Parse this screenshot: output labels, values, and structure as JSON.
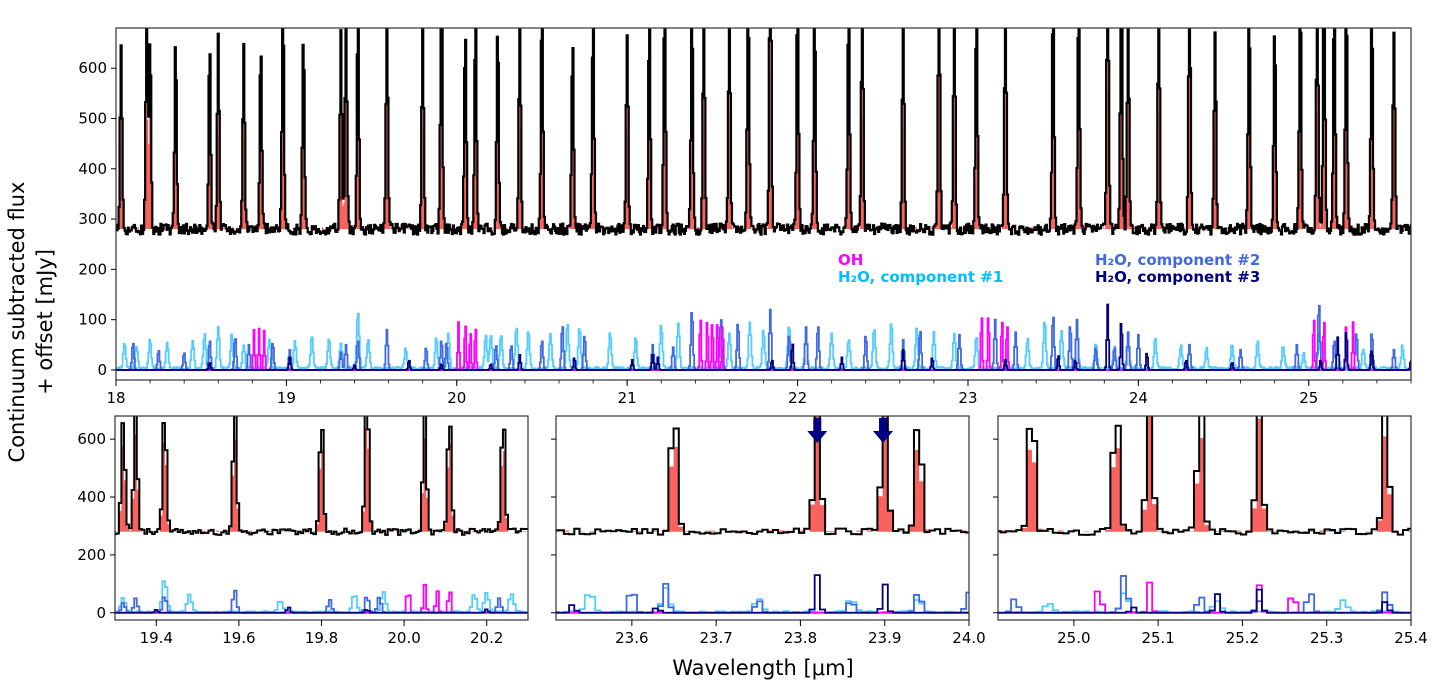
{
  "chart_data": [
    {
      "type": "line",
      "panel": "top-full",
      "xlim": [
        18,
        25.6
      ],
      "ylim": [
        -20,
        680
      ],
      "xticks": [
        18,
        19,
        20,
        21,
        22,
        23,
        24,
        25
      ],
      "yticks": [
        0,
        100,
        200,
        300,
        400,
        500,
        600
      ],
      "baseline_offset": 280,
      "series": [
        {
          "name": "Observed spectrum",
          "color": "#000000",
          "style": "step",
          "lines": [
            [
              18.03,
              370
            ],
            [
              18.18,
              405
            ],
            [
              18.2,
              395
            ],
            [
              18.35,
              380
            ],
            [
              18.55,
              370
            ],
            [
              18.6,
              390
            ],
            [
              18.75,
              365
            ],
            [
              18.85,
              370
            ],
            [
              18.98,
              455
            ],
            [
              19.1,
              385
            ],
            [
              19.32,
              390
            ],
            [
              19.35,
              420
            ],
            [
              19.42,
              430
            ],
            [
              19.59,
              420
            ],
            [
              19.8,
              400
            ],
            [
              19.91,
              515
            ],
            [
              20.05,
              400
            ],
            [
              20.11,
              420
            ],
            [
              20.24,
              400
            ],
            [
              20.37,
              410
            ],
            [
              20.5,
              470
            ],
            [
              20.68,
              390
            ],
            [
              20.8,
              420
            ],
            [
              21.0,
              395
            ],
            [
              21.13,
              430
            ],
            [
              21.22,
              470
            ],
            [
              21.38,
              450
            ],
            [
              21.45,
              430
            ],
            [
              21.6,
              460
            ],
            [
              21.71,
              480
            ],
            [
              21.84,
              633
            ],
            [
              22.0,
              470
            ],
            [
              22.1,
              450
            ],
            [
              22.3,
              460
            ],
            [
              22.38,
              470
            ],
            [
              22.62,
              415
            ],
            [
              22.83,
              500
            ],
            [
              22.92,
              430
            ],
            [
              23.05,
              460
            ],
            [
              23.22,
              455
            ],
            [
              23.5,
              470
            ],
            [
              23.65,
              480
            ],
            [
              23.82,
              560
            ],
            [
              23.9,
              550
            ],
            [
              23.94,
              430
            ],
            [
              24.12,
              470
            ],
            [
              24.3,
              510
            ],
            [
              24.45,
              400
            ],
            [
              24.65,
              460
            ],
            [
              24.8,
              410
            ],
            [
              24.95,
              490
            ],
            [
              25.05,
              480
            ],
            [
              25.09,
              528
            ],
            [
              25.15,
              460
            ],
            [
              25.22,
              490
            ],
            [
              25.37,
              440
            ],
            [
              25.5,
              400
            ]
          ]
        },
        {
          "name": "Model (total)",
          "color": "#f8635f",
          "style": "fill"
        },
        {
          "name": "OH",
          "color": "#ff00ff",
          "style": "step",
          "lines": [
            [
              18.81,
              80
            ],
            [
              18.84,
              82
            ],
            [
              18.87,
              78
            ],
            [
              20.01,
              95
            ],
            [
              20.05,
              97
            ],
            [
              20.08,
              80
            ],
            [
              20.11,
              90
            ],
            [
              21.43,
              110
            ],
            [
              21.47,
              105
            ],
            [
              21.5,
              100
            ],
            [
              21.53,
              100
            ],
            [
              21.56,
              95
            ],
            [
              23.08,
              115
            ],
            [
              23.12,
              115
            ],
            [
              23.2,
              105
            ],
            [
              23.23,
              95
            ],
            [
              25.03,
              110
            ],
            [
              25.09,
              105
            ],
            [
              25.22,
              95
            ],
            [
              25.26,
              95
            ]
          ]
        },
        {
          "name": "H2O, component #1",
          "color": "#55ccff",
          "style": "step",
          "lines": [
            [
              18.05,
              50
            ],
            [
              18.12,
              45
            ],
            [
              18.2,
              60
            ],
            [
              18.3,
              50
            ],
            [
              18.45,
              55
            ],
            [
              18.52,
              70
            ],
            [
              18.6,
              80
            ],
            [
              18.68,
              70
            ],
            [
              18.75,
              45
            ],
            [
              18.9,
              60
            ],
            [
              19.05,
              55
            ],
            [
              19.15,
              65
            ],
            [
              19.25,
              60
            ],
            [
              19.32,
              50
            ],
            [
              19.42,
              115
            ],
            [
              19.48,
              60
            ],
            [
              19.7,
              40
            ],
            [
              19.88,
              60
            ],
            [
              19.95,
              70
            ],
            [
              20.17,
              65
            ],
            [
              20.2,
              70
            ],
            [
              20.26,
              65
            ],
            [
              20.35,
              80
            ],
            [
              20.42,
              75
            ],
            [
              20.55,
              70
            ],
            [
              20.65,
              90
            ],
            [
              20.72,
              80
            ],
            [
              20.9,
              70
            ],
            [
              21.05,
              60
            ],
            [
              21.2,
              85
            ],
            [
              21.3,
              90
            ],
            [
              21.6,
              70
            ],
            [
              21.72,
              90
            ],
            [
              21.8,
              75
            ],
            [
              21.95,
              85
            ],
            [
              22.05,
              65
            ],
            [
              22.2,
              70
            ],
            [
              22.3,
              60
            ],
            [
              22.45,
              80
            ],
            [
              22.55,
              90
            ],
            [
              22.7,
              80
            ],
            [
              22.8,
              70
            ],
            [
              22.92,
              70
            ],
            [
              23.05,
              65
            ],
            [
              23.35,
              60
            ],
            [
              23.45,
              95
            ],
            [
              23.55,
              75
            ],
            [
              23.64,
              80
            ],
            [
              23.75,
              50
            ],
            [
              23.86,
              45
            ],
            [
              23.94,
              50
            ],
            [
              24.1,
              60
            ],
            [
              24.25,
              45
            ],
            [
              24.4,
              40
            ],
            [
              24.55,
              50
            ],
            [
              24.7,
              55
            ],
            [
              24.85,
              45
            ],
            [
              24.97,
              30
            ],
            [
              25.06,
              70
            ],
            [
              25.17,
              40
            ],
            [
              25.32,
              40
            ],
            [
              25.55,
              45
            ]
          ]
        },
        {
          "name": "H2O, component #2",
          "color": "#4169e1",
          "style": "step",
          "lines": [
            [
              18.1,
              55
            ],
            [
              18.25,
              40
            ],
            [
              18.4,
              35
            ],
            [
              18.55,
              60
            ],
            [
              18.7,
              65
            ],
            [
              18.78,
              50
            ],
            [
              18.92,
              55
            ],
            [
              19.02,
              40
            ],
            [
              19.32,
              35
            ],
            [
              19.35,
              50
            ],
            [
              19.42,
              60
            ],
            [
              19.59,
              80
            ],
            [
              19.82,
              45
            ],
            [
              19.91,
              60
            ],
            [
              19.94,
              55
            ],
            [
              20.23,
              50
            ],
            [
              20.32,
              50
            ],
            [
              20.5,
              60
            ],
            [
              20.62,
              90
            ],
            [
              20.75,
              70
            ],
            [
              21.15,
              50
            ],
            [
              21.27,
              45
            ],
            [
              21.38,
              120
            ],
            [
              21.55,
              105
            ],
            [
              21.65,
              95
            ],
            [
              21.84,
              120
            ],
            [
              21.95,
              70
            ],
            [
              22.05,
              85
            ],
            [
              22.12,
              90
            ],
            [
              22.4,
              70
            ],
            [
              22.62,
              60
            ],
            [
              22.72,
              80
            ],
            [
              22.95,
              70
            ],
            [
              23.16,
              100
            ],
            [
              23.28,
              75
            ],
            [
              23.5,
              110
            ],
            [
              23.6,
              90
            ],
            [
              23.64,
              100
            ],
            [
              23.75,
              45
            ],
            [
              23.86,
              45
            ],
            [
              23.94,
              75
            ],
            [
              24.0,
              70
            ],
            [
              24.3,
              50
            ],
            [
              24.6,
              40
            ],
            [
              24.93,
              50
            ],
            [
              25.06,
              135
            ],
            [
              25.15,
              60
            ],
            [
              25.22,
              40
            ],
            [
              25.28,
              75
            ],
            [
              25.37,
              75
            ],
            [
              25.5,
              40
            ]
          ]
        },
        {
          "name": "H2O, component #3",
          "color": "#000080",
          "style": "step",
          "lines": [
            [
              18.55,
              15
            ],
            [
              19.02,
              25
            ],
            [
              19.4,
              10
            ],
            [
              19.72,
              20
            ],
            [
              19.91,
              12
            ],
            [
              20.2,
              12
            ],
            [
              20.37,
              30
            ],
            [
              20.69,
              25
            ],
            [
              21.03,
              20
            ],
            [
              21.15,
              30
            ],
            [
              21.18,
              25
            ],
            [
              21.85,
              20
            ],
            [
              21.97,
              55
            ],
            [
              22.26,
              25
            ],
            [
              22.62,
              40
            ],
            [
              22.79,
              25
            ],
            [
              23.22,
              20
            ],
            [
              23.53,
              30
            ],
            [
              23.63,
              20
            ],
            [
              23.82,
              130
            ],
            [
              23.9,
              100
            ],
            [
              24.05,
              35
            ],
            [
              24.28,
              20
            ],
            [
              24.55,
              15
            ],
            [
              25.07,
              20
            ],
            [
              25.17,
              65
            ],
            [
              25.22,
              80
            ],
            [
              25.37,
              40
            ],
            [
              25.6,
              20
            ]
          ]
        }
      ],
      "legend": [
        {
          "label": "OH",
          "color": "#ff00ff",
          "position": "center-right"
        },
        {
          "label": "H₂O, component #1",
          "color": "#00bfff",
          "position": "center-right"
        },
        {
          "label": "H₂O, component #2",
          "color": "#4169e1",
          "position": "right"
        },
        {
          "label": "H₂O, component #3",
          "color": "#000080",
          "position": "right"
        }
      ]
    },
    {
      "type": "line",
      "panel": "bottom-left",
      "xlim": [
        19.3,
        20.3
      ],
      "ylim": [
        -25,
        680
      ],
      "xticks": [
        19.4,
        19.6,
        19.8,
        20.0,
        20.2
      ],
      "xtick_labels": [
        "19.4",
        "19.6",
        "19.8",
        "20.0",
        "20.2"
      ],
      "yticks": [
        0,
        200,
        400,
        600
      ],
      "range": [
        19.3,
        20.3
      ]
    },
    {
      "type": "line",
      "panel": "bottom-middle",
      "xlim": [
        23.51,
        24.0
      ],
      "ylim": [
        -25,
        680
      ],
      "xticks": [
        23.6,
        23.7,
        23.8,
        23.9,
        24.0
      ],
      "xtick_labels": [
        "23.6",
        "23.7",
        "23.8",
        "23.9",
        "24.0"
      ],
      "yticks": [
        0,
        200,
        400,
        600
      ],
      "range": [
        23.51,
        24.0
      ],
      "annotations": [
        {
          "type": "arrow-down",
          "x": 23.82,
          "color": "#000080",
          "label": "H2O component #3 line"
        },
        {
          "type": "arrow-down",
          "x": 23.898,
          "color": "#000080",
          "label": "H2O component #3 line"
        }
      ]
    },
    {
      "type": "line",
      "panel": "bottom-right",
      "xlim": [
        24.91,
        25.4
      ],
      "ylim": [
        -25,
        680
      ],
      "xticks": [
        25.0,
        25.1,
        25.2,
        25.3,
        25.4
      ],
      "xtick_labels": [
        "25.0",
        "25.1",
        "25.2",
        "25.3",
        "25.4"
      ],
      "yticks": [
        0,
        200,
        400,
        600
      ],
      "range": [
        24.91,
        25.4
      ]
    }
  ],
  "labels": {
    "ylabel_line1": "Continuum subtracted flux",
    "ylabel_line2": "+ offset [mJy]",
    "xlabel": "Wavelength [μm]",
    "legend_oh": "OH",
    "legend_c1": "H₂O, component #1",
    "legend_c2": "H₂O, component #2",
    "legend_c3": "H₂O, component #3"
  }
}
